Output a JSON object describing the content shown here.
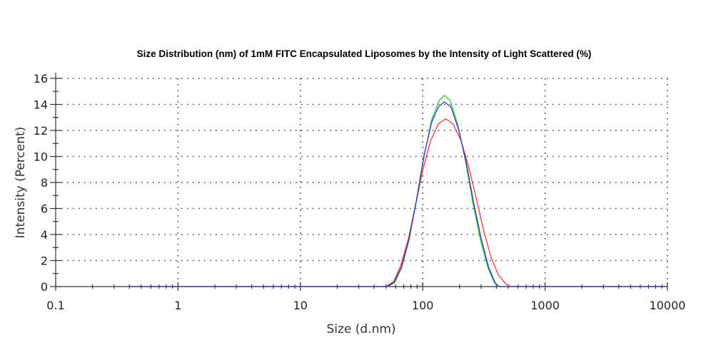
{
  "chart_data": {
    "type": "line",
    "title": "Size Distribution (nm) of 1mM FITC Encapsulated Liposomes by the Intensity of Light Scattered (%)",
    "xlabel": "Size (d.nm)",
    "ylabel": "Intensity (Percent)",
    "x_scale": "log",
    "xlim": [
      0.1,
      10000
    ],
    "ylim": [
      0,
      16
    ],
    "x_ticks": [
      "0.1",
      "1",
      "10",
      "100",
      "1000",
      "10000"
    ],
    "y_ticks": [
      "0",
      "2",
      "4",
      "6",
      "8",
      "10",
      "12",
      "14",
      "16"
    ],
    "grid": true,
    "legend": "none",
    "series": [
      {
        "color": "#ff3333",
        "points": [
          [
            0.4,
            0
          ],
          [
            50,
            0
          ],
          [
            58,
            0.4
          ],
          [
            66,
            1.6
          ],
          [
            76,
            3.6
          ],
          [
            88,
            6.4
          ],
          [
            101,
            9.1
          ],
          [
            116,
            11.2
          ],
          [
            134,
            12.5
          ],
          [
            154,
            12.9
          ],
          [
            177,
            12.5
          ],
          [
            204,
            11.3
          ],
          [
            236,
            9.3
          ],
          [
            272,
            6.9
          ],
          [
            313,
            4.4
          ],
          [
            360,
            2.3
          ],
          [
            415,
            0.9
          ],
          [
            478,
            0.2
          ],
          [
            520,
            0
          ],
          [
            10000,
            0
          ]
        ]
      },
      {
        "color": "#33cc33",
        "points": [
          [
            0.4,
            0
          ],
          [
            52,
            0
          ],
          [
            59,
            0.3
          ],
          [
            67,
            1.4
          ],
          [
            77,
            3.5
          ],
          [
            89,
            6.6
          ],
          [
            102,
            9.9
          ],
          [
            118,
            12.8
          ],
          [
            136,
            14.3
          ],
          [
            150,
            14.7
          ],
          [
            168,
            14.3
          ],
          [
            194,
            12.4
          ],
          [
            223,
            9.7
          ],
          [
            257,
            6.4
          ],
          [
            296,
            3.6
          ],
          [
            342,
            1.4
          ],
          [
            385,
            0.3
          ],
          [
            410,
            0
          ],
          [
            10000,
            0
          ]
        ]
      },
      {
        "color": "#3333cc",
        "points": [
          [
            0.4,
            0
          ],
          [
            51,
            0
          ],
          [
            58,
            0.3
          ],
          [
            67,
            1.5
          ],
          [
            77,
            3.6
          ],
          [
            89,
            6.7
          ],
          [
            102,
            10.0
          ],
          [
            118,
            12.6
          ],
          [
            134,
            13.8
          ],
          [
            150,
            14.2
          ],
          [
            170,
            13.8
          ],
          [
            196,
            12.1
          ],
          [
            226,
            9.6
          ],
          [
            260,
            6.5
          ],
          [
            300,
            3.7
          ],
          [
            345,
            1.5
          ],
          [
            390,
            0.3
          ],
          [
            420,
            0
          ],
          [
            10000,
            0
          ]
        ]
      }
    ]
  }
}
